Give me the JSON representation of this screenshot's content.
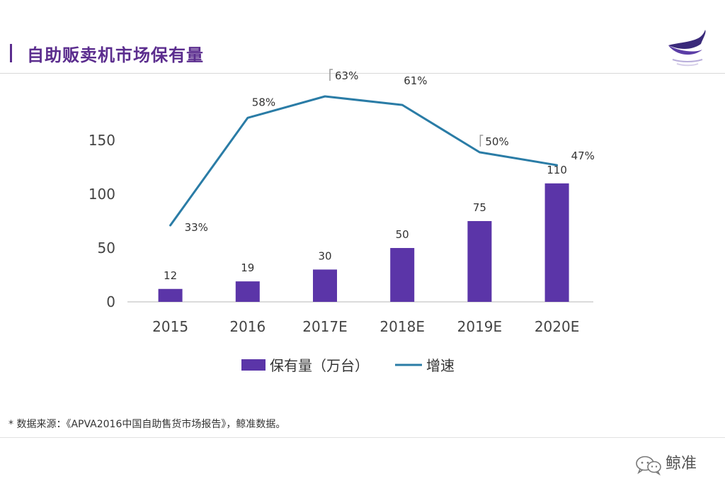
{
  "header": {
    "title": "自助贩卖机市场保有量",
    "logo_icon": "whale-logo-icon"
  },
  "colors": {
    "title": "#5b2d8e",
    "bar": "#5b35a8",
    "line": "#2a7ca6",
    "axis": "#cfcfcf"
  },
  "chart_data": {
    "type": "bar",
    "title": "",
    "xlabel": "",
    "ylabel": "",
    "categories": [
      "2015",
      "2016",
      "2017E",
      "2018E",
      "2019E",
      "2020E"
    ],
    "ylim": [
      0,
      150
    ],
    "yticks": [
      0,
      50,
      100,
      150
    ],
    "grid": false,
    "legend_position": "bottom",
    "series": [
      {
        "name": "保有量（万台）",
        "type": "bar",
        "values": [
          12,
          19,
          30,
          50,
          75,
          110
        ],
        "labels": [
          "12",
          "19",
          "30",
          "50",
          "75",
          "110"
        ]
      },
      {
        "name": "增速",
        "type": "line",
        "values": [
          33,
          58,
          63,
          61,
          50,
          47
        ],
        "labels": [
          "33%",
          "58%",
          "63%",
          "61%",
          "50%",
          "47%"
        ]
      }
    ]
  },
  "footer": {
    "source": "* 数据来源：《APVA2016中国自助售货市场报告》，鲸准数据。",
    "watermark": "鲸准",
    "watermark_icon": "wechat-icon"
  }
}
